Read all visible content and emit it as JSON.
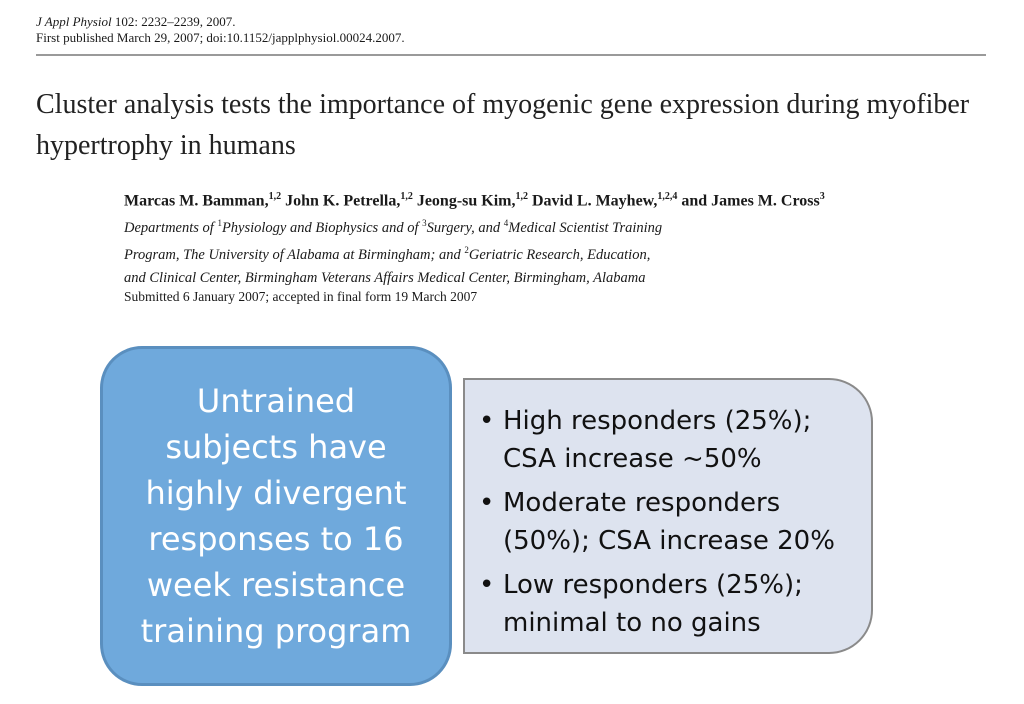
{
  "citation": {
    "journal": "J Appl Physiol",
    "volume_pages": "102: 2232–2239, 2007.",
    "published": "First published March 29, 2007; doi:10.1152/japplphysiol.00024.2007."
  },
  "title": "Cluster analysis tests the importance of myogenic gene expression during myofiber hypertrophy in humans",
  "authors": [
    {
      "name": "Marcas M. Bamman,",
      "sup": "1,2"
    },
    {
      "name": "John K. Petrella,",
      "sup": "1,2"
    },
    {
      "name": "Jeong-su Kim,",
      "sup": "1,2"
    },
    {
      "name": "David L. Mayhew,",
      "sup": "1,2,4"
    },
    {
      "name": "and James M. Cross",
      "sup": "3"
    }
  ],
  "affiliations": {
    "line1": {
      "a": "Departments of ",
      "s1": "1",
      "b": "Physiology and Biophysics and of ",
      "s2": "3",
      "c": "Surgery, and ",
      "s3": "4",
      "d": "Medical Scientist Training"
    },
    "line2": {
      "a": "Program, The University of Alabama at Birmingham; and ",
      "s1": "2",
      "b": "Geriatric Research, Education,"
    },
    "line3": "and Clinical Center, Birmingham Veterans Affairs Medical Center, Birmingham, Alabama"
  },
  "submitted": "Submitted 6 January 2007; accepted in final form 19 March 2007",
  "summary_box": {
    "lines": [
      "Untrained",
      "subjects have",
      "highly divergent",
      "responses to 16",
      "week resistance",
      "training program"
    ]
  },
  "responders": [
    {
      "lines": [
        "High responders (25%);",
        "CSA increase ~50%"
      ]
    },
    {
      "lines": [
        "Moderate responders",
        "(50%); CSA increase 20%"
      ]
    },
    {
      "lines": [
        "Low responders (25%);",
        "minimal to no gains"
      ]
    }
  ],
  "bullet_glyph": "•",
  "colors": {
    "summary_box_fill": "#6fa9dc",
    "list_box_fill": "#dde3ef"
  }
}
